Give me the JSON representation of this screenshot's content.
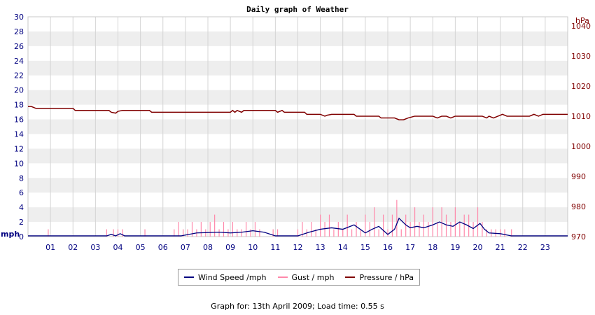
{
  "chart_data": {
    "type": "line",
    "title": "Daily graph of Weather",
    "left_axis": {
      "unit": "mph",
      "ylim": [
        0,
        30
      ],
      "ticks": [
        "0",
        "2",
        "4",
        "6",
        "8",
        "10",
        "12",
        "14",
        "16",
        "18",
        "20",
        "22",
        "24",
        "26",
        "28",
        "30"
      ]
    },
    "right_axis": {
      "unit": "hPa",
      "ylim": [
        970,
        1043
      ],
      "ticks": [
        "970",
        "980",
        "990",
        "1000",
        "1010",
        "1020",
        "1030",
        "1040"
      ]
    },
    "x_axis": {
      "ticks": [
        "01",
        "02",
        "03",
        "04",
        "05",
        "06",
        "07",
        "08",
        "09",
        "10",
        "11",
        "12",
        "13",
        "14",
        "15",
        "16",
        "17",
        "18",
        "19",
        "20",
        "21",
        "22",
        "23"
      ],
      "xlim": [
        0,
        24
      ]
    },
    "grid": true,
    "legend_position": "bottom",
    "series": [
      {
        "name": "Wind Speed /mph",
        "axis": "left",
        "color": "#000080",
        "x": [
          0,
          3.5,
          3.7,
          3.9,
          4.1,
          4.3,
          6.8,
          7.5,
          8.5,
          9.0,
          9.5,
          10.0,
          10.5,
          11.0,
          12.0,
          12.5,
          13.0,
          13.5,
          14.0,
          14.5,
          15.0,
          15.3,
          15.6,
          16.0,
          16.3,
          16.5,
          16.8,
          17.0,
          17.3,
          17.6,
          18.0,
          18.3,
          18.6,
          18.9,
          19.2,
          19.5,
          19.8,
          20.1,
          20.3,
          20.5,
          21.0,
          21.5,
          24.0
        ],
        "values": [
          0.1,
          0.1,
          0.3,
          0.1,
          0.4,
          0.1,
          0.1,
          0.5,
          0.6,
          0.5,
          0.6,
          0.8,
          0.6,
          0.1,
          0.1,
          0.6,
          1.0,
          1.2,
          1.0,
          1.6,
          0.5,
          1.0,
          1.4,
          0.3,
          1.0,
          2.5,
          1.6,
          1.2,
          1.4,
          1.2,
          1.6,
          2.0,
          1.6,
          1.4,
          2.0,
          1.6,
          1.1,
          1.8,
          1.0,
          0.5,
          0.4,
          0.1,
          0.1
        ]
      },
      {
        "name": "Gust / mph",
        "axis": "left",
        "color": "#ff88aa",
        "x": [
          0.9,
          3.5,
          3.8,
          4.0,
          4.2,
          5.2,
          6.5,
          6.7,
          6.9,
          7.1,
          7.3,
          7.5,
          7.7,
          7.9,
          8.1,
          8.3,
          8.5,
          8.7,
          8.9,
          9.1,
          9.3,
          9.5,
          9.7,
          9.9,
          10.1,
          10.3,
          10.9,
          11.1,
          12.0,
          12.2,
          12.4,
          12.6,
          12.8,
          13.0,
          13.2,
          13.4,
          13.6,
          13.8,
          14.0,
          14.2,
          14.4,
          14.6,
          14.8,
          15.0,
          15.2,
          15.4,
          15.6,
          15.8,
          16.0,
          16.2,
          16.4,
          16.6,
          16.8,
          17.0,
          17.2,
          17.4,
          17.6,
          17.8,
          18.0,
          18.2,
          18.4,
          18.6,
          18.8,
          19.0,
          19.2,
          19.4,
          19.6,
          19.8,
          20.0,
          20.2,
          20.4,
          20.6,
          20.8,
          21.0,
          21.2,
          21.5
        ],
        "values": [
          1,
          1,
          1,
          1,
          1,
          1,
          1,
          2,
          1,
          1,
          2,
          1,
          2,
          1,
          2,
          3,
          1,
          2,
          1,
          2,
          1,
          1,
          2,
          1,
          2,
          1,
          1,
          1,
          1,
          2,
          1,
          2,
          1,
          3,
          2,
          3,
          1,
          2,
          1,
          3,
          1,
          2,
          1,
          3,
          2,
          4,
          1,
          3,
          1,
          3,
          5,
          1,
          3,
          2,
          4,
          2,
          3,
          2,
          4,
          2,
          4,
          3,
          2,
          4,
          2,
          3,
          3,
          2,
          4,
          2,
          1,
          1,
          1,
          1,
          1,
          1
        ]
      },
      {
        "name": "Pressure / hPa",
        "axis": "right",
        "color": "#800000",
        "x": [
          0,
          0.15,
          0.35,
          2.0,
          2.1,
          3.6,
          3.7,
          3.9,
          4.0,
          4.2,
          5.4,
          5.5,
          9.0,
          9.1,
          9.2,
          9.3,
          9.5,
          9.6,
          11.0,
          11.1,
          11.3,
          11.4,
          11.6,
          11.7,
          12.3,
          12.4,
          13.0,
          13.2,
          13.3,
          13.5,
          14.5,
          14.6,
          15.6,
          15.7,
          16.3,
          16.5,
          16.7,
          16.9,
          17.2,
          18.0,
          18.2,
          18.4,
          18.6,
          18.8,
          19.0,
          19.2,
          20.2,
          20.4,
          20.5,
          20.7,
          20.9,
          21.1,
          21.3,
          21.5,
          22.3,
          22.5,
          22.7,
          22.9,
          23.1,
          24.0
        ],
        "values": [
          1013.2,
          1013.2,
          1012.6,
          1012.6,
          1011.9,
          1011.9,
          1011.3,
          1011.0,
          1011.6,
          1011.9,
          1011.9,
          1011.3,
          1011.3,
          1011.9,
          1011.3,
          1011.9,
          1011.3,
          1011.9,
          1011.9,
          1011.3,
          1011.9,
          1011.3,
          1011.3,
          1011.3,
          1011.3,
          1010.6,
          1010.6,
          1010.0,
          1010.3,
          1010.6,
          1010.6,
          1010.0,
          1010.0,
          1009.4,
          1009.4,
          1008.8,
          1008.8,
          1009.4,
          1010.0,
          1010.0,
          1009.4,
          1010.0,
          1010.0,
          1009.4,
          1010.0,
          1010.0,
          1010.0,
          1009.4,
          1010.0,
          1009.4,
          1010.0,
          1010.6,
          1010.0,
          1010.0,
          1010.0,
          1010.6,
          1010.0,
          1010.6,
          1010.6,
          1010.6
        ]
      }
    ]
  },
  "footer": {
    "text": "Graph for: 13th April 2009; Load time: 0.55 s"
  }
}
